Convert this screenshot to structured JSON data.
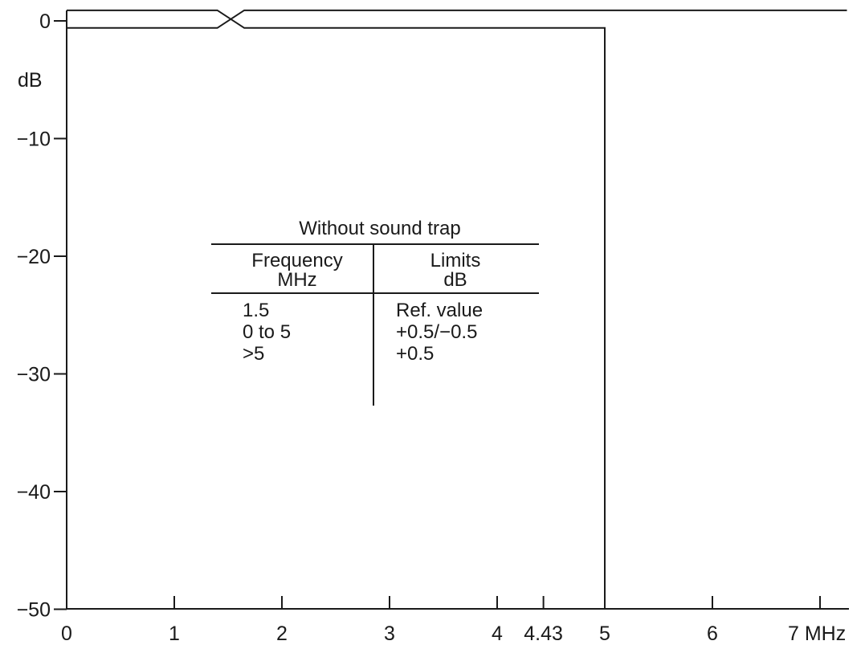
{
  "chart_data": {
    "type": "line",
    "x_ticks": [
      {
        "value": 0,
        "label": "0"
      },
      {
        "value": 1,
        "label": "1"
      },
      {
        "value": 2,
        "label": "2"
      },
      {
        "value": 3,
        "label": "3"
      },
      {
        "value": 4,
        "label": "4"
      },
      {
        "value": 4.43,
        "label": "4.43"
      },
      {
        "value": 5,
        "label": "5"
      },
      {
        "value": 6,
        "label": "6"
      },
      {
        "value": 7,
        "label": "7 MHz"
      }
    ],
    "y_ticks": [
      {
        "value": 0,
        "label": "0"
      },
      {
        "value": -10,
        "label": "−10"
      },
      {
        "value": -20,
        "label": "−20"
      },
      {
        "value": -30,
        "label": "−30"
      },
      {
        "value": -40,
        "label": "−40"
      },
      {
        "value": -50,
        "label": "−50"
      }
    ],
    "ylabel": "dB",
    "xlim": [
      0,
      7.25
    ],
    "ylim": [
      -50,
      1.0
    ],
    "grid": false,
    "series": [
      {
        "x": [
          0,
          1.4,
          1.65,
          7.25
        ],
        "y": [
          0.9,
          0.9,
          -0.6,
          -0.6
        ]
      },
      {
        "x": [
          0,
          1.4,
          1.65,
          5,
          5,
          7.25
        ],
        "y": [
          -0.6,
          -0.6,
          0.9,
          0.9,
          -0.6,
          -0.6
        ]
      },
      {
        "x": [
          0,
          1.4,
          1.65,
          5,
          5
        ],
        "y": [
          -0.6,
          -0.6,
          -0.6,
          -0.6,
          -50
        ]
      }
    ]
  },
  "limits_table": {
    "title": "Without sound trap",
    "col1_header_line1": "Frequency",
    "col1_header_line2": "MHz",
    "col2_header_line1": "Limits",
    "col2_header_line2": "dB",
    "rows": [
      {
        "frequency": "1.5",
        "limit": "Ref. value"
      },
      {
        "frequency": "0 to 5",
        "limit": "+0.5/−0.5"
      },
      {
        "frequency": ">5",
        "limit": "+0.5"
      }
    ]
  }
}
